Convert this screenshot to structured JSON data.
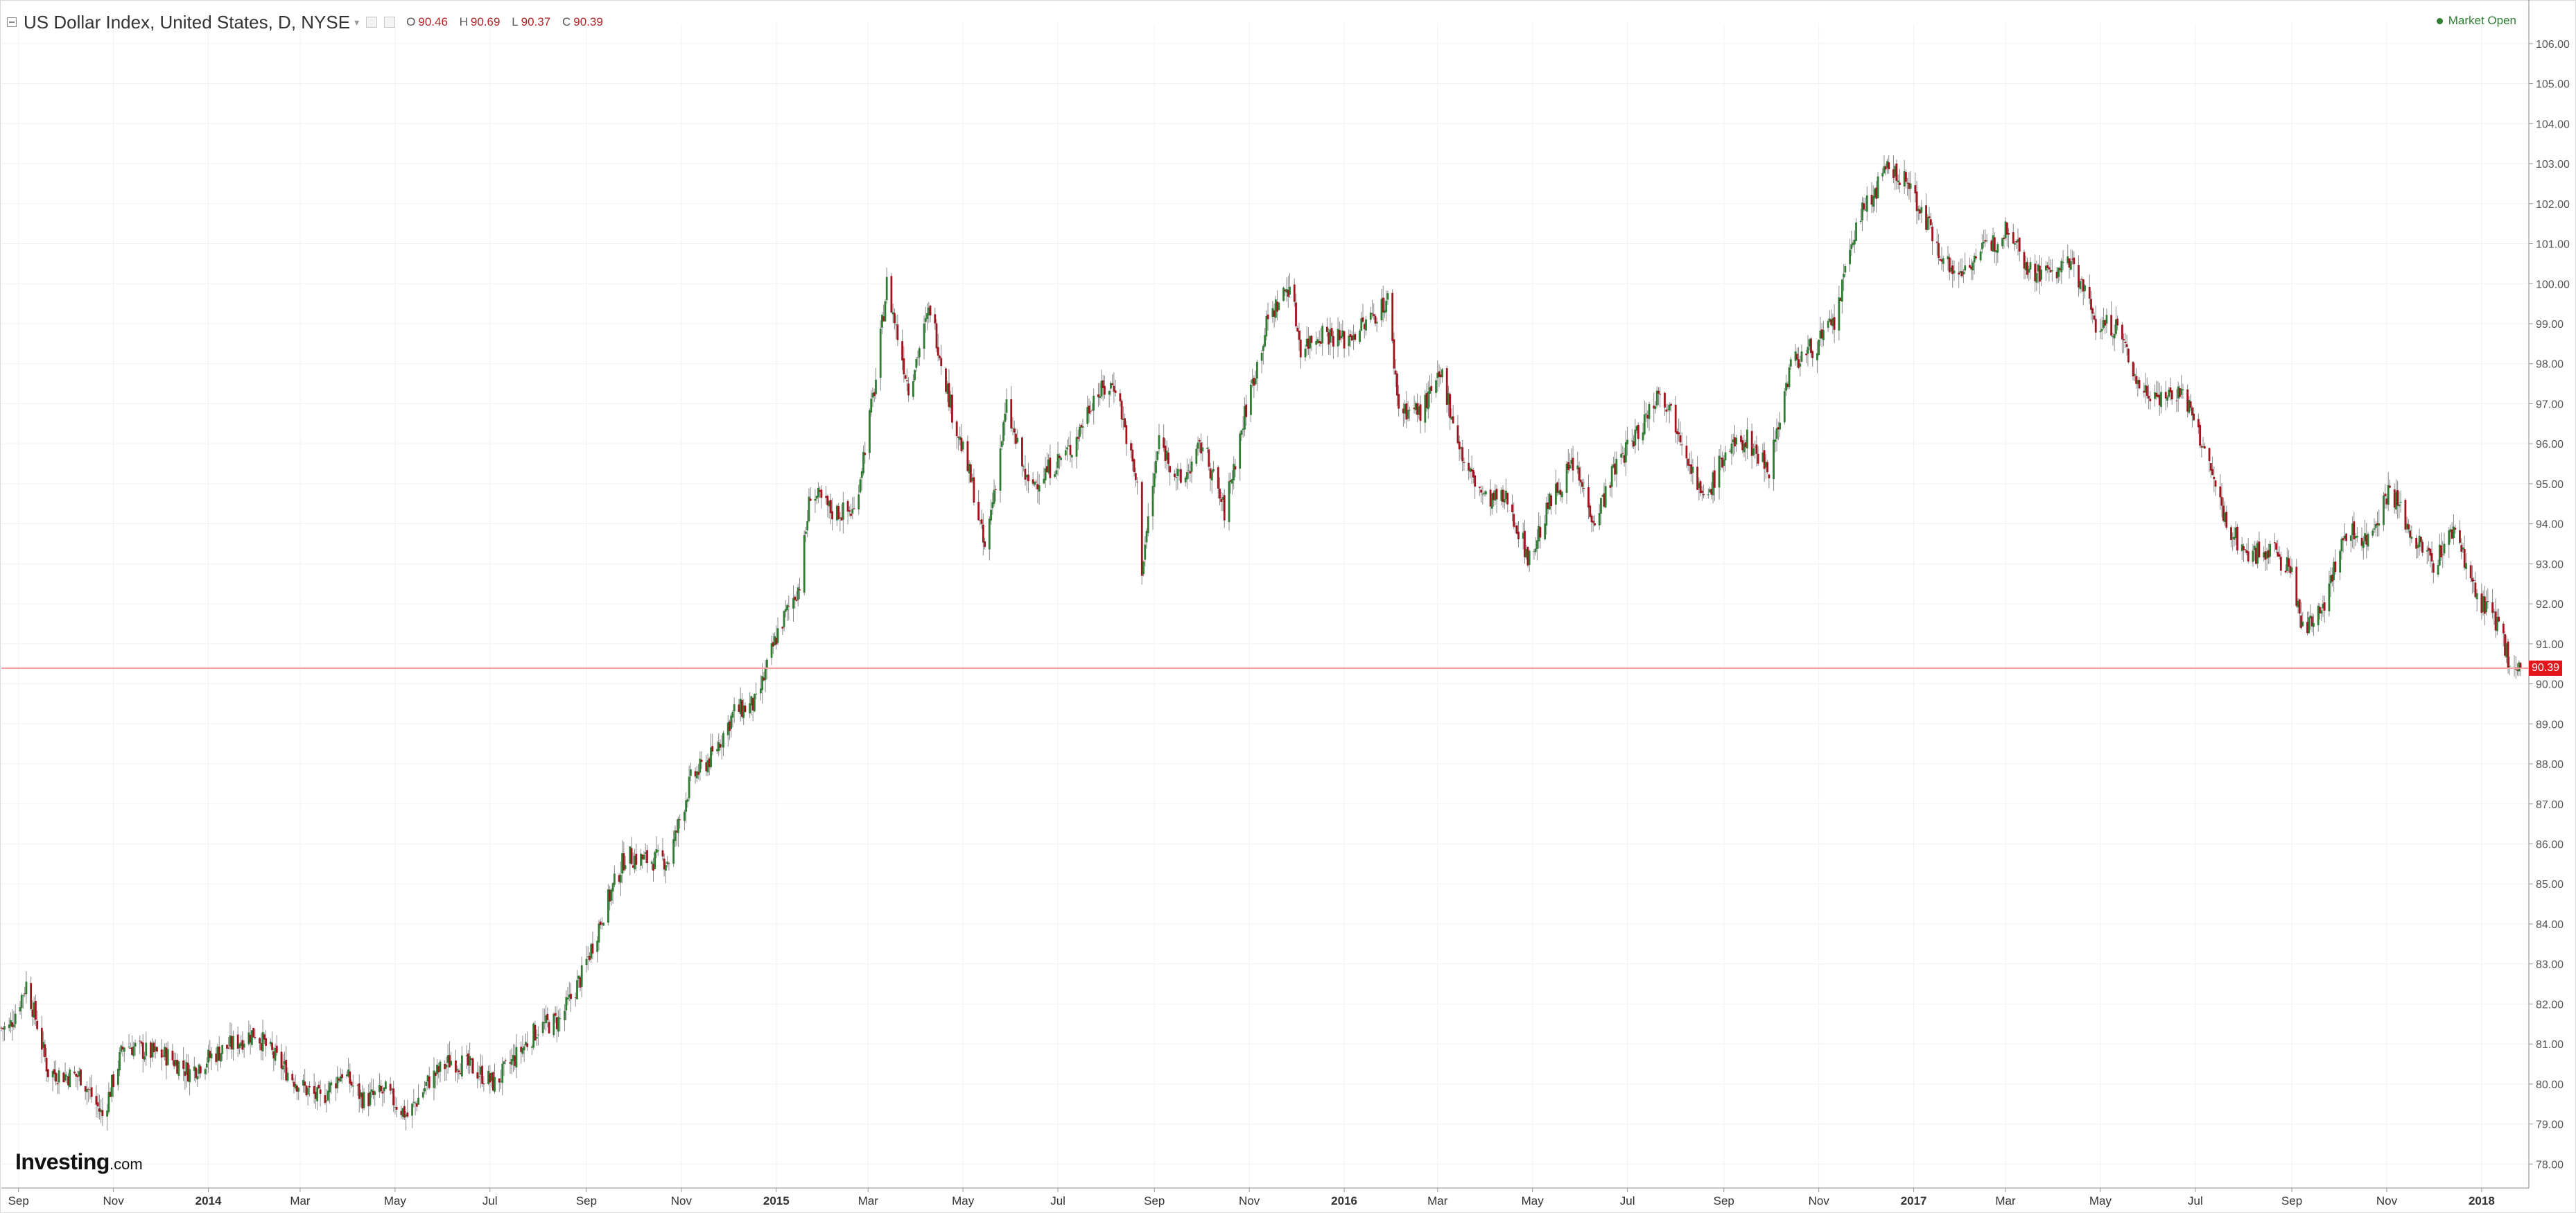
{
  "header": {
    "symbol_title": "US Dollar Index, United States, D, NYSE",
    "ohlc": {
      "o_label": "O",
      "o": "90.46",
      "h_label": "H",
      "h": "90.69",
      "l_label": "L",
      "l": "90.37",
      "c_label": "C",
      "c": "90.39"
    }
  },
  "market_status": "Market Open",
  "last_price_label": "90.39",
  "watermark": {
    "brand": "Investing",
    "domain": ".com"
  },
  "colors": {
    "up": "#2e7d32",
    "down": "#a0141e",
    "wick": "#888888",
    "grid": "#f1f1f1",
    "last_price_line": "#f4a0a0",
    "last_price_tag": "#e3171b"
  },
  "chart_data": {
    "type": "candlestick",
    "title": "US Dollar Index, United States, D, NYSE",
    "y_range": [
      77.4,
      106.5
    ],
    "y_ticks": [
      78,
      79,
      80,
      81,
      82,
      83,
      84,
      85,
      86,
      87,
      88,
      89,
      90,
      91,
      92,
      93,
      94,
      95,
      96,
      97,
      98,
      99,
      100,
      101,
      102,
      103,
      104,
      105,
      106
    ],
    "y_tick_labels": [
      "78.00",
      "79.00",
      "80.00",
      "81.00",
      "82.00",
      "83.00",
      "84.00",
      "85.00",
      "86.00",
      "87.00",
      "88.00",
      "89.00",
      "90.00",
      "91.00",
      "92.00",
      "93.00",
      "94.00",
      "95.00",
      "96.00",
      "97.00",
      "98.00",
      "99.00",
      "100.00",
      "101.00",
      "102.00",
      "103.00",
      "104.00",
      "105.00",
      "106.00"
    ],
    "x_range": [
      "2013-08-21",
      "2018-01-26"
    ],
    "x_ticks": [
      {
        "label": "Sep",
        "date": "2013-09-01",
        "bold": false
      },
      {
        "label": "Nov",
        "date": "2013-11-01",
        "bold": false
      },
      {
        "label": "2014",
        "date": "2014-01-01",
        "bold": true
      },
      {
        "label": "Mar",
        "date": "2014-03-01",
        "bold": false
      },
      {
        "label": "May",
        "date": "2014-05-01",
        "bold": false
      },
      {
        "label": "Jul",
        "date": "2014-07-01",
        "bold": false
      },
      {
        "label": "Sep",
        "date": "2014-09-01",
        "bold": false
      },
      {
        "label": "Nov",
        "date": "2014-11-01",
        "bold": false
      },
      {
        "label": "2015",
        "date": "2015-01-01",
        "bold": true
      },
      {
        "label": "Mar",
        "date": "2015-03-01",
        "bold": false
      },
      {
        "label": "May",
        "date": "2015-05-01",
        "bold": false
      },
      {
        "label": "Jul",
        "date": "2015-07-01",
        "bold": false
      },
      {
        "label": "Sep",
        "date": "2015-09-01",
        "bold": false
      },
      {
        "label": "Nov",
        "date": "2015-11-01",
        "bold": false
      },
      {
        "label": "2016",
        "date": "2016-01-01",
        "bold": true
      },
      {
        "label": "Mar",
        "date": "2016-03-01",
        "bold": false
      },
      {
        "label": "May",
        "date": "2016-05-01",
        "bold": false
      },
      {
        "label": "Jul",
        "date": "2016-07-01",
        "bold": false
      },
      {
        "label": "Sep",
        "date": "2016-09-01",
        "bold": false
      },
      {
        "label": "Nov",
        "date": "2016-11-01",
        "bold": false
      },
      {
        "label": "2017",
        "date": "2017-01-01",
        "bold": true
      },
      {
        "label": "Mar",
        "date": "2017-03-01",
        "bold": false
      },
      {
        "label": "May",
        "date": "2017-05-01",
        "bold": false
      },
      {
        "label": "Jul",
        "date": "2017-07-01",
        "bold": false
      },
      {
        "label": "Sep",
        "date": "2017-09-01",
        "bold": false
      },
      {
        "label": "Nov",
        "date": "2017-11-01",
        "bold": false
      },
      {
        "label": "2018",
        "date": "2018-01-01",
        "bold": true
      }
    ],
    "last_price": 90.39,
    "closes": [
      [
        "2013-08-26",
        81.4
      ],
      [
        "2013-09-06",
        82.5
      ],
      [
        "2013-09-13",
        81.5
      ],
      [
        "2013-09-20",
        80.3
      ],
      [
        "2013-10-04",
        80.2
      ],
      [
        "2013-10-11",
        80.2
      ],
      [
        "2013-10-25",
        79.2
      ],
      [
        "2013-11-08",
        81.0
      ],
      [
        "2013-11-22",
        80.8
      ],
      [
        "2013-12-06",
        80.7
      ],
      [
        "2013-12-20",
        80.3
      ],
      [
        "2014-01-03",
        80.7
      ],
      [
        "2014-01-17",
        81.0
      ],
      [
        "2014-01-31",
        81.3
      ],
      [
        "2014-02-14",
        80.6
      ],
      [
        "2014-02-28",
        80.0
      ],
      [
        "2014-03-14",
        79.6
      ],
      [
        "2014-03-28",
        80.3
      ],
      [
        "2014-04-11",
        79.6
      ],
      [
        "2014-04-25",
        79.8
      ],
      [
        "2014-05-09",
        79.2
      ],
      [
        "2014-05-23",
        80.1
      ],
      [
        "2014-06-06",
        80.6
      ],
      [
        "2014-06-20",
        80.4
      ],
      [
        "2014-07-04",
        80.0
      ],
      [
        "2014-07-18",
        80.7
      ],
      [
        "2014-08-01",
        81.4
      ],
      [
        "2014-08-15",
        81.6
      ],
      [
        "2014-08-29",
        82.7
      ],
      [
        "2014-09-12",
        84.3
      ],
      [
        "2014-09-26",
        85.7
      ],
      [
        "2014-10-10",
        85.6
      ],
      [
        "2014-10-24",
        85.6
      ],
      [
        "2014-11-07",
        87.6
      ],
      [
        "2014-11-21",
        88.2
      ],
      [
        "2014-12-05",
        89.3
      ],
      [
        "2014-12-19",
        89.5
      ],
      [
        "2015-01-02",
        91.3
      ],
      [
        "2015-01-16",
        92.5
      ],
      [
        "2015-01-23",
        94.8
      ],
      [
        "2015-02-06",
        94.3
      ],
      [
        "2015-02-20",
        94.3
      ],
      [
        "2015-03-06",
        97.6
      ],
      [
        "2015-03-13",
        100.0
      ],
      [
        "2015-03-27",
        97.4
      ],
      [
        "2015-04-10",
        99.4
      ],
      [
        "2015-04-24",
        96.8
      ],
      [
        "2015-05-08",
        94.8
      ],
      [
        "2015-05-15",
        93.3
      ],
      [
        "2015-05-29",
        96.9
      ],
      [
        "2015-06-12",
        94.9
      ],
      [
        "2015-06-26",
        95.4
      ],
      [
        "2015-07-10",
        95.9
      ],
      [
        "2015-07-24",
        97.2
      ],
      [
        "2015-08-07",
        97.5
      ],
      [
        "2015-08-21",
        94.9
      ],
      [
        "2015-08-24",
        92.9
      ],
      [
        "2015-09-04",
        96.1
      ],
      [
        "2015-09-18",
        95.0
      ],
      [
        "2015-10-02",
        96.0
      ],
      [
        "2015-10-16",
        94.3
      ],
      [
        "2015-10-30",
        96.9
      ],
      [
        "2015-11-13",
        99.1
      ],
      [
        "2015-11-27",
        100.0
      ],
      [
        "2015-12-04",
        98.4
      ],
      [
        "2015-12-18",
        98.8
      ],
      [
        "2016-01-01",
        98.6
      ],
      [
        "2016-01-15",
        99.0
      ],
      [
        "2016-01-29",
        99.6
      ],
      [
        "2016-02-05",
        96.9
      ],
      [
        "2016-02-19",
        96.8
      ],
      [
        "2016-03-04",
        97.7
      ],
      [
        "2016-03-18",
        95.5
      ],
      [
        "2016-04-01",
        94.6
      ],
      [
        "2016-04-15",
        94.6
      ],
      [
        "2016-04-29",
        93.1
      ],
      [
        "2016-05-13",
        94.6
      ],
      [
        "2016-05-27",
        95.5
      ],
      [
        "2016-06-10",
        94.1
      ],
      [
        "2016-06-24",
        95.5
      ],
      [
        "2016-07-08",
        96.3
      ],
      [
        "2016-07-22",
        97.4
      ],
      [
        "2016-08-05",
        96.2
      ],
      [
        "2016-08-19",
        94.5
      ],
      [
        "2016-09-02",
        95.8
      ],
      [
        "2016-09-16",
        96.1
      ],
      [
        "2016-09-30",
        95.4
      ],
      [
        "2016-10-14",
        98.0
      ],
      [
        "2016-10-28",
        98.4
      ],
      [
        "2016-11-11",
        99.0
      ],
      [
        "2016-11-25",
        101.5
      ],
      [
        "2016-12-16",
        102.9
      ],
      [
        "2016-12-30",
        102.4
      ],
      [
        "2017-01-13",
        101.2
      ],
      [
        "2017-01-27",
        100.2
      ],
      [
        "2017-02-10",
        100.7
      ],
      [
        "2017-02-24",
        101.1
      ],
      [
        "2017-03-03",
        101.5
      ],
      [
        "2017-03-17",
        100.3
      ],
      [
        "2017-03-31",
        100.3
      ],
      [
        "2017-04-14",
        100.5
      ],
      [
        "2017-04-28",
        99.0
      ],
      [
        "2017-05-12",
        98.9
      ],
      [
        "2017-05-26",
        97.4
      ],
      [
        "2017-06-09",
        97.2
      ],
      [
        "2017-06-23",
        97.3
      ],
      [
        "2017-07-07",
        95.8
      ],
      [
        "2017-07-21",
        94.0
      ],
      [
        "2017-08-04",
        93.2
      ],
      [
        "2017-08-18",
        93.4
      ],
      [
        "2017-09-01",
        92.8
      ],
      [
        "2017-09-08",
        91.3
      ],
      [
        "2017-09-22",
        92.1
      ],
      [
        "2017-10-06",
        93.8
      ],
      [
        "2017-10-20",
        93.6
      ],
      [
        "2017-11-03",
        94.9
      ],
      [
        "2017-11-17",
        93.7
      ],
      [
        "2017-12-01",
        93.0
      ],
      [
        "2017-12-15",
        93.9
      ],
      [
        "2017-12-29",
        92.1
      ],
      [
        "2018-01-12",
        91.5
      ],
      [
        "2018-01-19",
        90.5
      ],
      [
        "2018-01-26",
        90.39
      ]
    ]
  }
}
